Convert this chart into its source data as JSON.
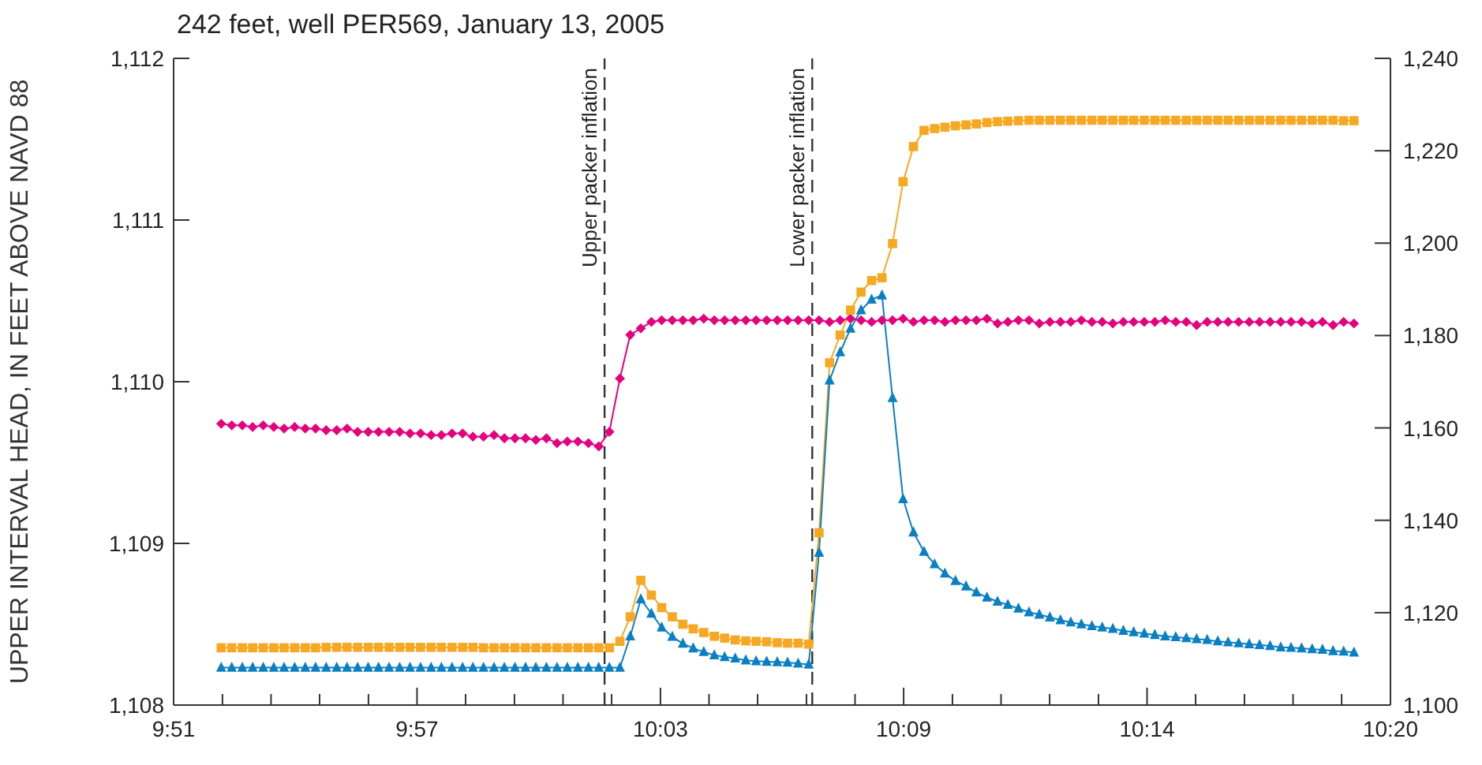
{
  "chart_data": {
    "type": "line",
    "title": "242 feet, well PER569, January 13, 2005",
    "ylabel": "UPPER INTERVAL HEAD, IN FEET ABOVE NAVD 88",
    "x": [
      9.8722,
      9.8764,
      9.8806,
      9.8847,
      9.8889,
      9.8931,
      9.8972,
      9.9014,
      9.9056,
      9.9097,
      9.9139,
      9.9181,
      9.9222,
      9.9264,
      9.9306,
      9.9347,
      9.9389,
      9.9431,
      9.9472,
      9.9514,
      9.9556,
      9.9597,
      9.9639,
      9.9681,
      9.9722,
      9.9764,
      9.9806,
      9.9847,
      9.9889,
      9.9931,
      9.9972,
      10.0014,
      10.0056,
      10.0097,
      10.0139,
      10.0181,
      10.0222,
      10.0264,
      10.0306,
      10.0347,
      10.0389,
      10.0431,
      10.0472,
      10.0514,
      10.0556,
      10.0597,
      10.0639,
      10.0681,
      10.0722,
      10.0764,
      10.0806,
      10.0847,
      10.0889,
      10.0931,
      10.0972,
      10.1014,
      10.1056,
      10.1097,
      10.1139,
      10.1181,
      10.1222,
      10.1264,
      10.1306,
      10.1347,
      10.1389,
      10.1431,
      10.1472,
      10.1514,
      10.1556,
      10.1597,
      10.1639,
      10.1681,
      10.1722,
      10.1764,
      10.1806,
      10.1847,
      10.1889,
      10.1931,
      10.1972,
      10.2014,
      10.2056,
      10.2097,
      10.2139,
      10.2181,
      10.2222,
      10.2264,
      10.2306,
      10.2347,
      10.2389,
      10.2431,
      10.2472,
      10.2514,
      10.2556,
      10.2597,
      10.2639,
      10.2681,
      10.2722,
      10.2764,
      10.2806,
      10.2847,
      10.2889,
      10.2931,
      10.2972,
      10.3014,
      10.3056,
      10.3097,
      10.3139,
      10.3181,
      10.3222
    ],
    "xlim": [
      9.8533,
      10.3367
    ],
    "xticks": [
      {
        "value": 9.8533,
        "label": "9:51"
      },
      {
        "value": 9.8727,
        "label": null
      },
      {
        "value": 9.892,
        "label": null
      },
      {
        "value": 9.9113,
        "label": null
      },
      {
        "value": 9.9307,
        "label": null
      },
      {
        "value": 9.95,
        "label": "9:57"
      },
      {
        "value": 9.9693,
        "label": null
      },
      {
        "value": 9.9887,
        "label": null
      },
      {
        "value": 10.008,
        "label": null
      },
      {
        "value": 10.0273,
        "label": null
      },
      {
        "value": 10.0467,
        "label": "10:03"
      },
      {
        "value": 10.066,
        "label": null
      },
      {
        "value": 10.0853,
        "label": null
      },
      {
        "value": 10.1047,
        "label": null
      },
      {
        "value": 10.124,
        "label": null
      },
      {
        "value": 10.1433,
        "label": "10:09"
      },
      {
        "value": 10.1627,
        "label": null
      },
      {
        "value": 10.182,
        "label": null
      },
      {
        "value": 10.2013,
        "label": null
      },
      {
        "value": 10.2207,
        "label": null
      },
      {
        "value": 10.24,
        "label": "10:14"
      },
      {
        "value": 10.2593,
        "label": null
      },
      {
        "value": 10.2787,
        "label": null
      },
      {
        "value": 10.298,
        "label": null
      },
      {
        "value": 10.3173,
        "label": null
      },
      {
        "value": 10.3367,
        "label": "10:20"
      }
    ],
    "ylim": [
      1108,
      1112
    ],
    "yticks": [
      {
        "value": 1108,
        "label": "1,108"
      },
      {
        "value": 1109,
        "label": "1,109"
      },
      {
        "value": 1110,
        "label": "1,110"
      },
      {
        "value": 1111,
        "label": "1,111"
      },
      {
        "value": 1112,
        "label": "1,112"
      }
    ],
    "y2lim": [
      1100,
      1240
    ],
    "y2ticks": [
      {
        "value": 1100,
        "label": "1,100"
      },
      {
        "value": 1120,
        "label": "1,120"
      },
      {
        "value": 1140,
        "label": "1,140"
      },
      {
        "value": 1160,
        "label": "1,160"
      },
      {
        "value": 1180,
        "label": "1,180"
      },
      {
        "value": 1200,
        "label": "1,200"
      },
      {
        "value": 1220,
        "label": "1,220"
      },
      {
        "value": 1240,
        "label": "1,240"
      }
    ],
    "series": [
      {
        "color": "#e6007e",
        "marker": "diamond",
        "values": [
          1109.74,
          1109.73,
          1109.73,
          1109.72,
          1109.73,
          1109.72,
          1109.71,
          1109.72,
          1109.71,
          1109.71,
          1109.7,
          1109.7,
          1109.71,
          1109.69,
          1109.69,
          1109.69,
          1109.69,
          1109.69,
          1109.68,
          1109.68,
          1109.67,
          1109.67,
          1109.68,
          1109.68,
          1109.66,
          1109.66,
          1109.67,
          1109.65,
          1109.65,
          1109.65,
          1109.64,
          1109.65,
          1109.62,
          1109.63,
          1109.63,
          1109.62,
          1109.6,
          1109.69,
          1110.02,
          1110.29,
          1110.33,
          1110.37,
          1110.38,
          1110.38,
          1110.38,
          1110.38,
          1110.39,
          1110.38,
          1110.38,
          1110.38,
          1110.38,
          1110.38,
          1110.38,
          1110.38,
          1110.38,
          1110.38,
          1110.38,
          1110.38,
          1110.37,
          1110.38,
          1110.39,
          1110.38,
          1110.37,
          1110.38,
          1110.38,
          1110.39,
          1110.37,
          1110.38,
          1110.38,
          1110.37,
          1110.38,
          1110.38,
          1110.38,
          1110.39,
          1110.36,
          1110.37,
          1110.38,
          1110.38,
          1110.36,
          1110.37,
          1110.37,
          1110.37,
          1110.38,
          1110.37,
          1110.37,
          1110.36,
          1110.37,
          1110.37,
          1110.37,
          1110.37,
          1110.38,
          1110.37,
          1110.37,
          1110.35,
          1110.37,
          1110.37,
          1110.37,
          1110.37,
          1110.37,
          1110.37,
          1110.37,
          1110.37,
          1110.37,
          1110.37,
          1110.36,
          1110.37,
          1110.35,
          1110.37,
          1110.36
        ]
      },
      {
        "color": "#f7a823",
        "marker": "square",
        "axis": "y2",
        "values": [
          1112.4,
          1112.4,
          1112.4,
          1112.4,
          1112.4,
          1112.4,
          1112.4,
          1112.4,
          1112.4,
          1112.4,
          1112.5,
          1112.5,
          1112.5,
          1112.5,
          1112.5,
          1112.5,
          1112.5,
          1112.5,
          1112.5,
          1112.5,
          1112.5,
          1112.5,
          1112.5,
          1112.5,
          1112.5,
          1112.4,
          1112.4,
          1112.4,
          1112.4,
          1112.4,
          1112.4,
          1112.4,
          1112.4,
          1112.4,
          1112.4,
          1112.4,
          1112.4,
          1112.4,
          1113.8,
          1119.1,
          1127.0,
          1123.8,
          1121.1,
          1119.1,
          1117.5,
          1116.5,
          1115.7,
          1114.9,
          1114.5,
          1114.1,
          1113.9,
          1113.8,
          1113.7,
          1113.5,
          1113.4,
          1113.4,
          1113.2,
          1137.3,
          1174.1,
          1180.1,
          1185.5,
          1189.4,
          1191.9,
          1192.5,
          1199.9,
          1213.3,
          1220.9,
          1224.4,
          1224.8,
          1225.1,
          1225.4,
          1225.6,
          1225.8,
          1226.1,
          1226.3,
          1226.4,
          1226.5,
          1226.6,
          1226.6,
          1226.6,
          1226.6,
          1226.6,
          1226.6,
          1226.6,
          1226.6,
          1226.6,
          1226.6,
          1226.6,
          1226.6,
          1226.6,
          1226.6,
          1226.6,
          1226.6,
          1226.6,
          1226.6,
          1226.6,
          1226.6,
          1226.6,
          1226.6,
          1226.6,
          1226.6,
          1226.6,
          1226.6,
          1226.6,
          1226.6,
          1226.6,
          1226.6,
          1226.5,
          1226.5
        ]
      },
      {
        "color": "#0a7fc2",
        "marker": "triangle",
        "axis": "y2",
        "values": [
          1108.1,
          1108.1,
          1108.1,
          1108.1,
          1108.1,
          1108.1,
          1108.1,
          1108.1,
          1108.1,
          1108.1,
          1108.1,
          1108.1,
          1108.1,
          1108.1,
          1108.1,
          1108.1,
          1108.1,
          1108.1,
          1108.1,
          1108.1,
          1108.1,
          1108.1,
          1108.1,
          1108.1,
          1108.1,
          1108.1,
          1108.1,
          1108.1,
          1108.1,
          1108.1,
          1108.1,
          1108.1,
          1108.1,
          1108.1,
          1108.1,
          1108.1,
          1108.1,
          1108.1,
          1108.1,
          1114.9,
          1122.9,
          1119.8,
          1116.8,
          1114.8,
          1113.3,
          1112.3,
          1111.5,
          1110.8,
          1110.4,
          1110.1,
          1109.7,
          1109.5,
          1109.4,
          1109.3,
          1109.2,
          1109.0,
          1108.8,
          1133.0,
          1170.3,
          1176.4,
          1181.5,
          1185.5,
          1187.8,
          1188.7,
          1166.5,
          1144.6,
          1137.4,
          1133.2,
          1130.5,
          1128.5,
          1126.9,
          1125.7,
          1124.4,
          1123.3,
          1122.4,
          1121.7,
          1120.9,
          1120.1,
          1119.6,
          1119.0,
          1118.4,
          1117.9,
          1117.5,
          1117.1,
          1116.8,
          1116.5,
          1116.1,
          1115.8,
          1115.5,
          1115.2,
          1114.9,
          1114.7,
          1114.5,
          1114.3,
          1114.1,
          1113.8,
          1113.6,
          1113.4,
          1113.2,
          1113.0,
          1112.8,
          1112.5,
          1112.4,
          1112.3,
          1112.1,
          1112.0,
          1111.7,
          1111.6,
          1111.4
        ]
      }
    ],
    "ref_lines": [
      {
        "axis": "x",
        "value": 10.0245,
        "label": "Upper packer inflation",
        "color": "#333333",
        "line_style": "dashed"
      },
      {
        "axis": "x",
        "value": 10.107,
        "label": "Lower packer inflation",
        "color": "#333333",
        "line_style": "dashed"
      }
    ]
  }
}
